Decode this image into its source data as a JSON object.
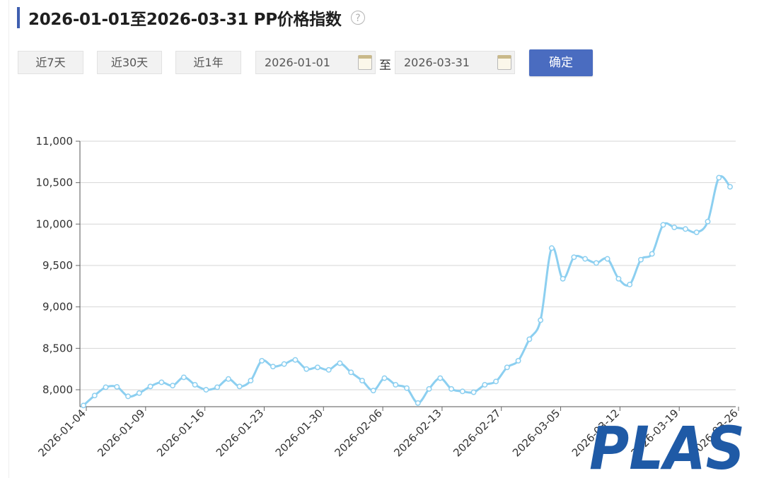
{
  "header": {
    "title": "2026-01-01至2026-03-31 PP价格指数",
    "help_icon": "question-circle-icon"
  },
  "controls": {
    "range_buttons": [
      "近7天",
      "近30天",
      "近1年"
    ],
    "start_date": "2026-01-01",
    "separator": "至",
    "end_date": "2026-03-31",
    "confirm_label": "确定",
    "calendar_icon": "calendar-icon"
  },
  "colors": {
    "accent": "#3f5fb0",
    "line": "#8ccff0",
    "confirm_button": "#4a6cc0",
    "logo": "#1f5aa6"
  },
  "logo": {
    "text": "PLAS"
  },
  "chart_data": {
    "type": "line",
    "title": "",
    "xlabel": "",
    "ylabel": "",
    "ylim": [
      7800,
      11000
    ],
    "yticks": [
      "8,000",
      "8,500",
      "9,000",
      "9,500",
      "10,000",
      "10,500",
      "11,000"
    ],
    "ytick_values": [
      8000,
      8500,
      9000,
      9500,
      10000,
      10500,
      11000
    ],
    "xticks": [
      "2026-01-04",
      "2026-01-09",
      "2026-01-16",
      "2026-01-23",
      "2026-01-30",
      "2026-02-06",
      "2026-02-13",
      "2026-02-27",
      "2026-03-05",
      "2026-03-12",
      "2026-03-19",
      "2026-03-26"
    ],
    "grid": true,
    "legend": "none",
    "series": [
      {
        "values": [
          7810,
          7930,
          8030,
          8035,
          7920,
          7960,
          8040,
          8090,
          8050,
          8150,
          8060,
          8000,
          8030,
          8130,
          8040,
          8110,
          8350,
          8280,
          8310,
          8360,
          8250,
          8270,
          8240,
          8320,
          8210,
          8110,
          7990,
          8140,
          8060,
          8020,
          7840,
          8010,
          8140,
          8010,
          7980,
          7970,
          8060,
          8100,
          8270,
          8350,
          8610,
          8840,
          9710,
          9340,
          9600,
          9580,
          9530,
          9580,
          9340,
          9270,
          9570,
          9640,
          9990,
          9960,
          9940,
          9900,
          10030,
          10560,
          10450
        ]
      }
    ]
  }
}
